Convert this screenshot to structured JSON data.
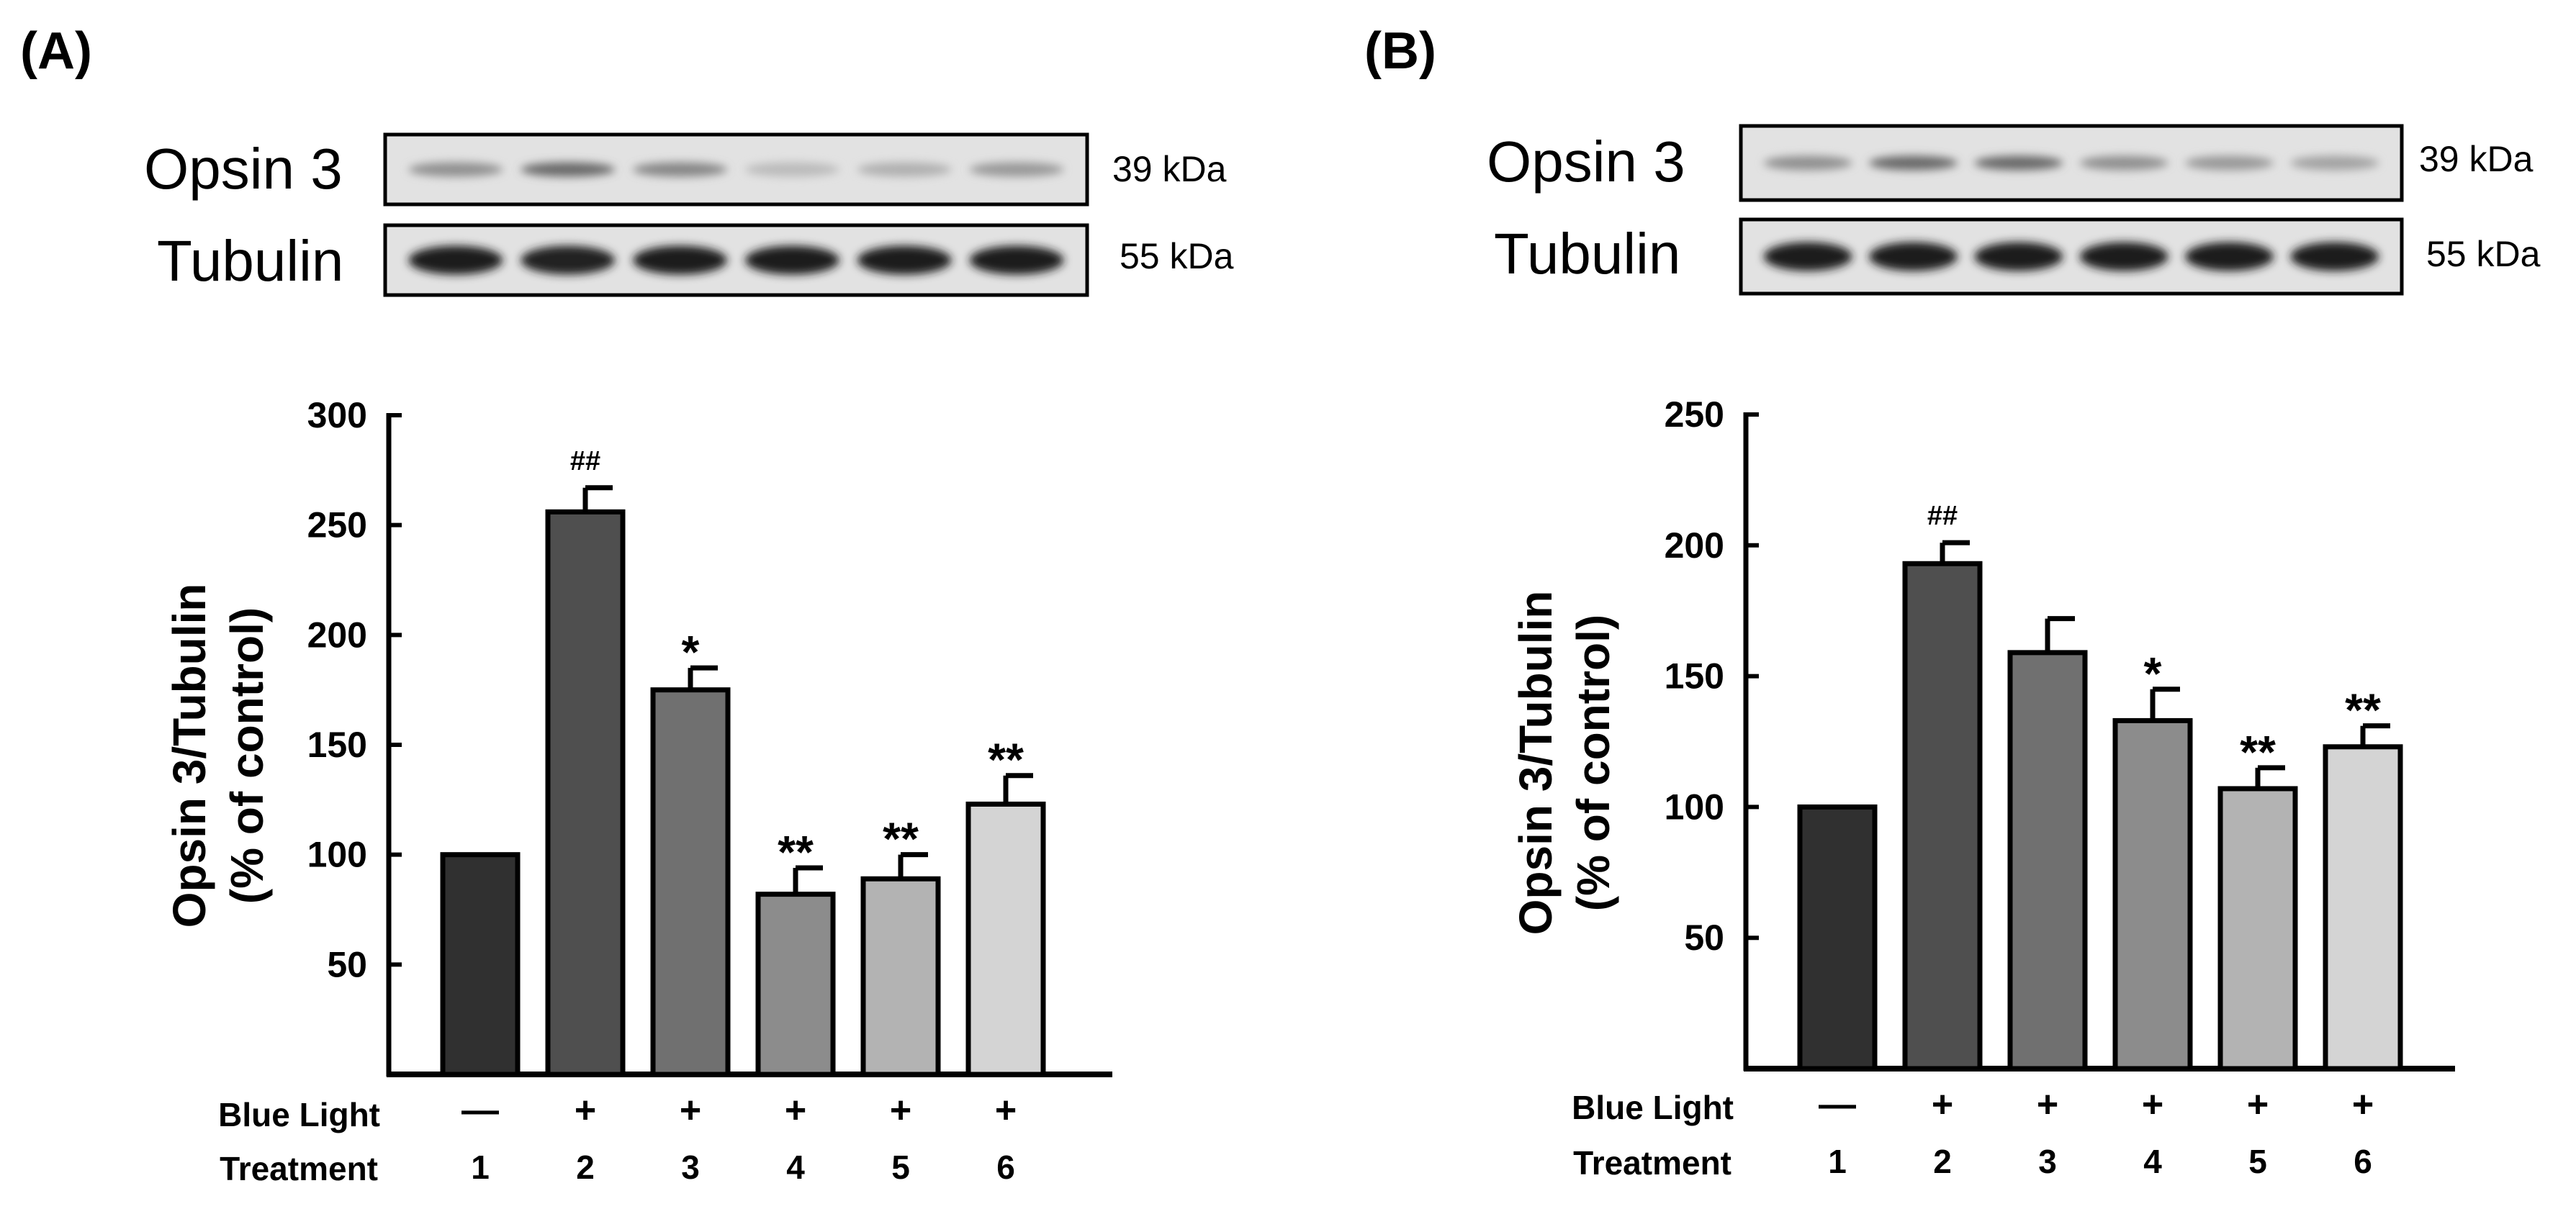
{
  "panels": [
    {
      "label": "(A)",
      "blot": {
        "rows": [
          {
            "name": "Opsin 3",
            "mw": "39 kDa",
            "intensity": [
              0.35,
              0.55,
              0.4,
              0.12,
              0.18,
              0.3
            ]
          },
          {
            "name": "Tubulin",
            "mw": "55 kDa",
            "intensity": [
              0.95,
              0.92,
              0.95,
              0.95,
              0.95,
              0.95
            ]
          }
        ]
      },
      "x_row_labels": {
        "blue_light": "Blue Light",
        "treatment": "Treatment"
      },
      "blue_light": [
        "—",
        "+",
        "+",
        "+",
        "+",
        "+"
      ],
      "treatments": [
        "1",
        "2",
        "3",
        "4",
        "5",
        "6"
      ]
    },
    {
      "label": "(B)",
      "blot": {
        "rows": [
          {
            "name": "Opsin 3",
            "mw": "39 kDa",
            "intensity": [
              0.35,
              0.55,
              0.55,
              0.35,
              0.3,
              0.25
            ]
          },
          {
            "name": "Tubulin",
            "mw": "55 kDa",
            "intensity": [
              0.95,
              0.95,
              0.95,
              0.95,
              0.95,
              0.95
            ]
          }
        ]
      },
      "x_row_labels": {
        "blue_light": "Blue Light",
        "treatment": "Treatment"
      },
      "blue_light": [
        "—",
        "+",
        "+",
        "+",
        "+",
        "+"
      ],
      "treatments": [
        "1",
        "2",
        "3",
        "4",
        "5",
        "6"
      ]
    }
  ],
  "chart_data": [
    {
      "type": "bar",
      "title": "",
      "xlabel": "",
      "ylabel": [
        "Opsin 3/Tubulin",
        "(% of control)"
      ],
      "ylim": [
        0,
        300
      ],
      "yticks": [
        50,
        100,
        150,
        200,
        250,
        300
      ],
      "categories": [
        "1",
        "2",
        "3",
        "4",
        "5",
        "6"
      ],
      "values": [
        100,
        256,
        175,
        82,
        89,
        123
      ],
      "errors": [
        0,
        11,
        10,
        12,
        11,
        13
      ],
      "annotations": [
        "",
        "##",
        "*",
        "**",
        "**",
        "**"
      ],
      "bar_colors": [
        "#303030",
        "#4f4f4f",
        "#707070",
        "#8c8c8c",
        "#b3b3b3",
        "#d4d4d4"
      ],
      "grid": false
    },
    {
      "type": "bar",
      "title": "",
      "xlabel": "",
      "ylabel": [
        "Opsin 3/Tubulin",
        "(% of control)"
      ],
      "ylim": [
        0,
        250
      ],
      "yticks": [
        50,
        100,
        150,
        200,
        250
      ],
      "categories": [
        "1",
        "2",
        "3",
        "4",
        "5",
        "6"
      ],
      "values": [
        100,
        193,
        159,
        133,
        107,
        123
      ],
      "errors": [
        0,
        8,
        13,
        12,
        8,
        8
      ],
      "annotations": [
        "",
        "##",
        "",
        "*",
        "**",
        "**"
      ],
      "bar_colors": [
        "#303030",
        "#4f4f4f",
        "#707070",
        "#8c8c8c",
        "#b3b3b3",
        "#d4d4d4"
      ],
      "grid": false
    }
  ]
}
